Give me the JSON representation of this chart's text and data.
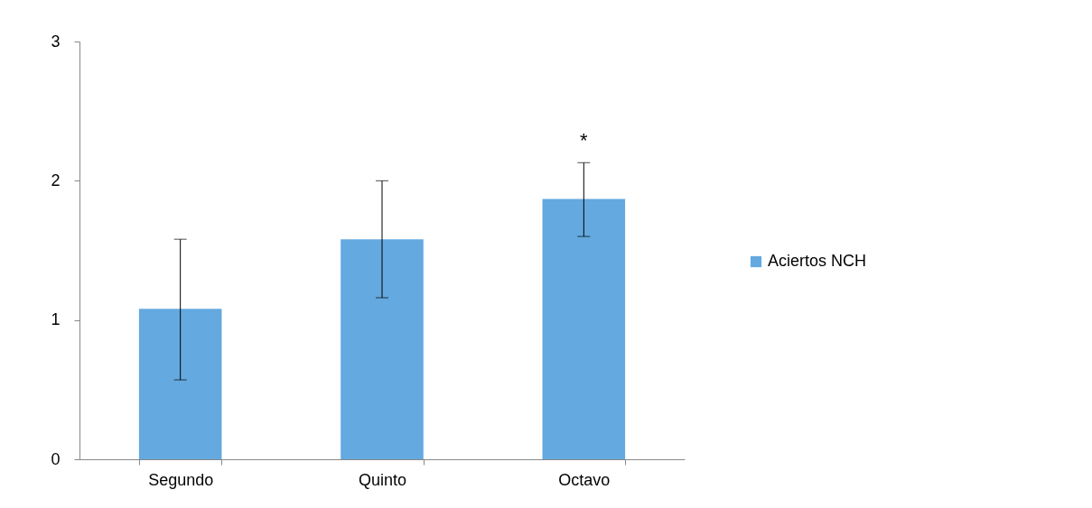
{
  "chart_data": {
    "type": "bar",
    "categories": [
      "Segundo",
      "Quinto",
      "Octavo"
    ],
    "series": [
      {
        "name": "Aciertos NCH",
        "color": "#64a9e0",
        "values": [
          1.08,
          1.58,
          1.87
        ],
        "errors": [
          [
            0.57,
            1.58
          ],
          [
            1.16,
            2.0
          ],
          [
            1.6,
            2.13
          ]
        ]
      }
    ],
    "ylim": [
      0,
      3
    ],
    "yticks": [
      0,
      1,
      2,
      3
    ],
    "grid": false,
    "legend": "right",
    "annotations": [
      {
        "text": "*",
        "x": "Octavo",
        "y": 2.13
      }
    ]
  }
}
